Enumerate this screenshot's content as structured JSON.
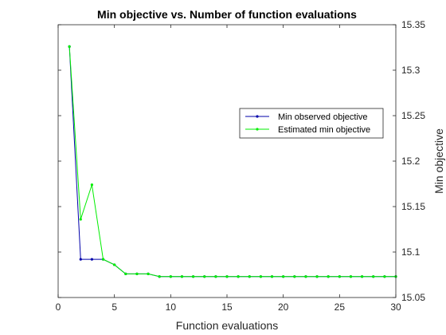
{
  "chart_data": {
    "type": "line",
    "title": "Min objective vs. Number of function evaluations",
    "xlabel": "Function evaluations",
    "ylabel": "Min objective",
    "xlim": [
      0,
      30
    ],
    "ylim": [
      15.05,
      15.35
    ],
    "xticks": [
      0,
      5,
      10,
      15,
      20,
      25,
      30
    ],
    "yticks": [
      15.05,
      15.1,
      15.15,
      15.2,
      15.25,
      15.3,
      15.35
    ],
    "ytick_labels": [
      "15.05",
      "15.1",
      "15.15",
      "15.2",
      "15.25",
      "15.3",
      "15.35"
    ],
    "y_axis_location": "right",
    "grid": false,
    "legend_placement": "right",
    "x": [
      1,
      2,
      3,
      4,
      5,
      6,
      7,
      8,
      9,
      10,
      11,
      12,
      13,
      14,
      15,
      16,
      17,
      18,
      19,
      20,
      21,
      22,
      23,
      24,
      25,
      26,
      27,
      28,
      29,
      30
    ],
    "series": [
      {
        "name": "Min observed objective",
        "color": "#0000aa",
        "values": [
          15.326,
          15.092,
          15.092,
          15.092,
          15.086,
          15.076,
          15.076,
          15.076,
          15.073,
          15.073,
          15.073,
          15.073,
          15.073,
          15.073,
          15.073,
          15.073,
          15.073,
          15.073,
          15.073,
          15.073,
          15.073,
          15.073,
          15.073,
          15.073,
          15.073,
          15.073,
          15.073,
          15.073,
          15.073,
          15.073
        ]
      },
      {
        "name": "Estimated min objective",
        "color": "#00ee00",
        "values": [
          15.326,
          15.136,
          15.174,
          15.092,
          15.086,
          15.076,
          15.076,
          15.076,
          15.073,
          15.073,
          15.073,
          15.073,
          15.073,
          15.073,
          15.073,
          15.073,
          15.073,
          15.073,
          15.073,
          15.073,
          15.073,
          15.073,
          15.073,
          15.073,
          15.073,
          15.073,
          15.073,
          15.073,
          15.073,
          15.073
        ]
      }
    ]
  }
}
